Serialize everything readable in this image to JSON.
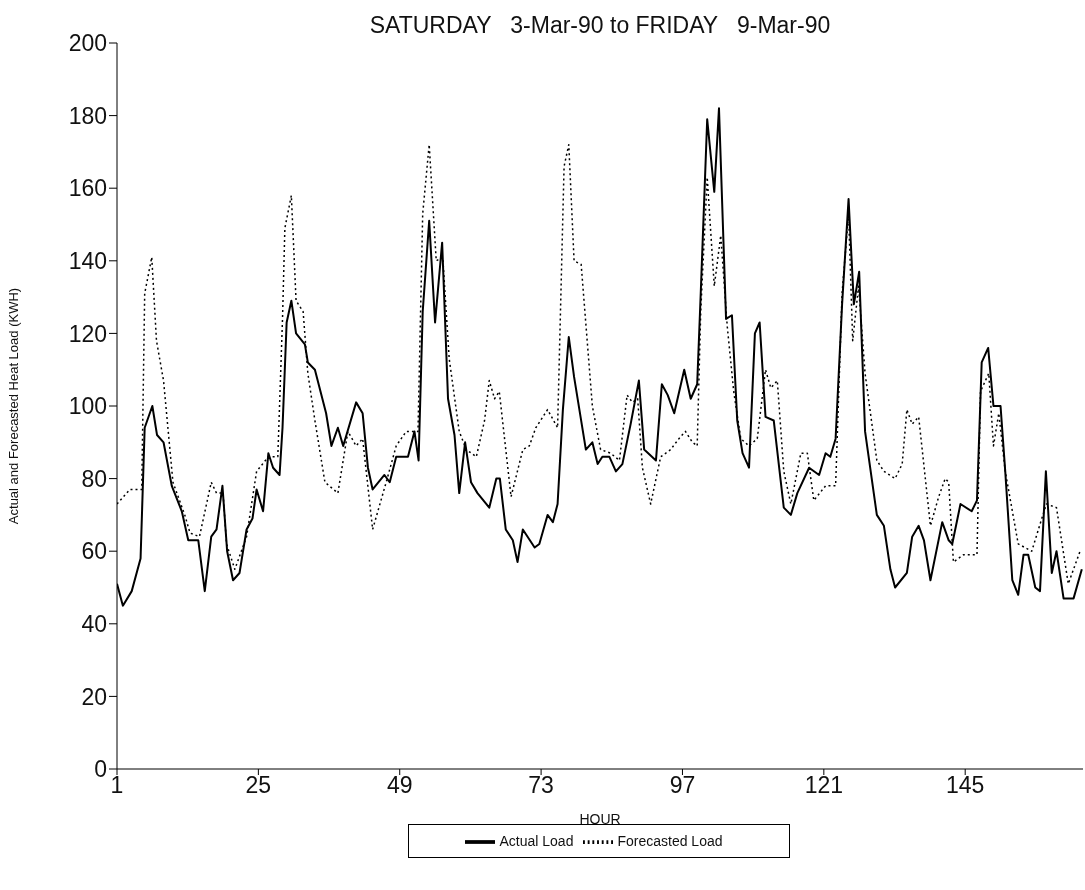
{
  "chart_data": {
    "type": "line",
    "title": "SATURDAY   3-Mar-90 to FRIDAY   9-Mar-90",
    "xlabel": "HOUR",
    "ylabel": "Actual and Forecasted Heat Load (KWH)",
    "xlim": [
      1,
      165
    ],
    "xticks": [
      1,
      25,
      49,
      73,
      97,
      121,
      145
    ],
    "ylim": [
      0,
      200
    ],
    "yticks": [
      0,
      20,
      40,
      60,
      80,
      100,
      120,
      140,
      160,
      180,
      200
    ],
    "legend": "bottom",
    "series": [
      {
        "name": "Actual Load",
        "color": "#000000",
        "line_style": "solid",
        "x": [
          1,
          2,
          3.5,
          5,
          5.7,
          7,
          7.8,
          8.9,
          10.3,
          12,
          13.1,
          14.8,
          15.9,
          17,
          17.9,
          18.9,
          19.7,
          20.7,
          21.8,
          23,
          24,
          24.7,
          25.8,
          26.7,
          27.5,
          28.6,
          29.1,
          29.8,
          30.6,
          31.4,
          32.9,
          33.4,
          34.6,
          36.5,
          37.4,
          38.5,
          39.4,
          41.6,
          42.7,
          43.6,
          44.4,
          46.4,
          47.3,
          48.4,
          50.4,
          51.5,
          52.2,
          52.9,
          54,
          55,
          56.2,
          57.2,
          58.3,
          59.1,
          60.1,
          61.1,
          62.2,
          64.2,
          65.4,
          66,
          67,
          68.2,
          69,
          69.9,
          71.9,
          72.7,
          74.1,
          75,
          75.8,
          76.7,
          77.7,
          78.6,
          80.6,
          81.7,
          82.6,
          83.4,
          84.6,
          85.7,
          86.8,
          88.2,
          89.6,
          90.5,
          92.5,
          93.5,
          94.5,
          95.6,
          97.3,
          98.4,
          99.5,
          100.1,
          101.2,
          102.4,
          103.2,
          104.4,
          105.4,
          106.3,
          107.2,
          108.3,
          109.3,
          110.1,
          111.1,
          112.5,
          114.2,
          115.4,
          116.5,
          118.5,
          120.2,
          121.3,
          122.1,
          123,
          124.1,
          125.2,
          126.1,
          127,
          128,
          130,
          131.2,
          132.3,
          133.1,
          135.1,
          136,
          137.1,
          138,
          139.1,
          141.1,
          142.2,
          142.8,
          144.2,
          146.1,
          147,
          147.8,
          148.9,
          149.8,
          151,
          151.8,
          153,
          154,
          154.9,
          155.7,
          156.9,
          157.7,
          158.7,
          159.7,
          160.5,
          161.7,
          163.4,
          164.8
        ],
        "values": [
          51,
          45,
          49,
          58,
          94,
          100,
          92,
          90,
          78,
          71,
          63,
          63,
          49,
          64,
          66,
          78,
          60,
          52,
          54,
          66,
          69,
          77,
          71,
          87,
          83,
          81,
          94,
          123,
          129,
          120,
          117,
          112,
          110,
          98,
          89,
          94,
          89,
          101,
          98,
          83,
          77,
          81,
          79,
          86,
          86,
          93,
          85,
          126,
          151,
          123,
          145,
          102,
          92,
          76,
          90,
          79,
          76,
          72,
          80,
          80,
          66,
          63,
          57,
          66,
          61,
          62,
          70,
          68,
          73,
          99,
          119,
          108,
          88,
          90,
          84,
          86,
          86,
          82,
          84,
          95,
          107,
          88,
          85,
          106,
          103,
          98,
          110,
          102,
          106,
          131,
          179,
          159,
          182,
          124,
          125,
          96,
          87,
          83,
          120,
          123,
          97,
          96,
          72,
          70,
          76,
          83,
          81,
          87,
          86,
          91,
          128,
          157,
          128,
          137,
          93,
          70,
          67,
          55,
          50,
          54,
          64,
          67,
          63,
          52,
          68,
          63,
          62,
          73,
          71,
          74,
          112,
          116,
          100,
          100,
          82,
          52,
          48,
          59,
          59,
          50,
          49,
          82,
          54,
          60,
          47,
          47,
          55
        ]
      },
      {
        "name": "Forecasted Load",
        "color": "#000000",
        "line_style": "dotted",
        "x": [
          1,
          3.2,
          5.2,
          5.7,
          6.9,
          7.7,
          8.9,
          10.5,
          12.5,
          13.4,
          15,
          17,
          17.9,
          19,
          19.6,
          21,
          23,
          24.7,
          26.7,
          28.3,
          29.1,
          29.5,
          30.6,
          31.4,
          32.6,
          33.4,
          34.6,
          36.3,
          38.5,
          40.2,
          41.6,
          42.7,
          44.4,
          46.7,
          48.4,
          50.1,
          52.1,
          52.9,
          54,
          55.2,
          56.3,
          57.4,
          59.1,
          60.3,
          62,
          63.4,
          64.2,
          65.1,
          65.9,
          67.9,
          69.9,
          71,
          72.1,
          74.1,
          75.8,
          76.9,
          77.7,
          78.6,
          79.8,
          81.7,
          83.1,
          84.8,
          86.3,
          87.6,
          88.5,
          89.4,
          90.2,
          91.6,
          93.3,
          95,
          96.4,
          97.5,
          98.7,
          99.5,
          100.1,
          101.2,
          102.4,
          103.5,
          104.6,
          105.7,
          106.9,
          108.3,
          109.7,
          111.1,
          112,
          113.1,
          114.2,
          115.4,
          117.1,
          118.2,
          119.3,
          121.3,
          123,
          124.1,
          125.2,
          125.9,
          126.9,
          128,
          130,
          131.2,
          133.1,
          134.3,
          135.1,
          136,
          137.1,
          139.1,
          140.5,
          141.6,
          142.2,
          143,
          144.7,
          147,
          147.6,
          149,
          149.8,
          150.7,
          151.8,
          154,
          156.3,
          158,
          158.8,
          160.5,
          162.5,
          164.5
        ],
        "values": [
          73,
          77,
          77,
          131,
          141,
          118,
          107,
          79,
          70,
          65,
          64,
          79,
          76,
          76,
          62,
          55,
          64,
          82,
          86,
          86,
          124,
          149,
          158,
          129,
          126,
          109,
          96,
          79,
          76,
          93,
          89,
          91,
          66,
          79,
          89,
          93,
          93,
          153,
          172,
          140,
          141,
          113,
          93,
          88,
          86,
          96,
          107,
          102,
          104,
          75,
          88,
          89,
          94,
          99,
          94,
          166,
          172,
          140,
          139,
          100,
          88,
          87,
          85,
          103,
          101,
          102,
          83,
          73,
          86,
          88,
          91,
          93,
          90,
          89,
          126,
          163,
          133,
          147,
          122,
          104,
          91,
          89,
          91,
          110,
          105,
          107,
          82,
          73,
          87,
          87,
          74,
          78,
          78,
          131,
          153,
          118,
          133,
          109,
          85,
          82,
          80,
          84,
          99,
          95,
          97,
          67,
          75,
          80,
          79,
          57,
          59,
          59,
          104,
          109,
          89,
          98,
          82,
          62,
          60,
          69,
          73,
          72,
          51,
          60
        ]
      }
    ]
  }
}
